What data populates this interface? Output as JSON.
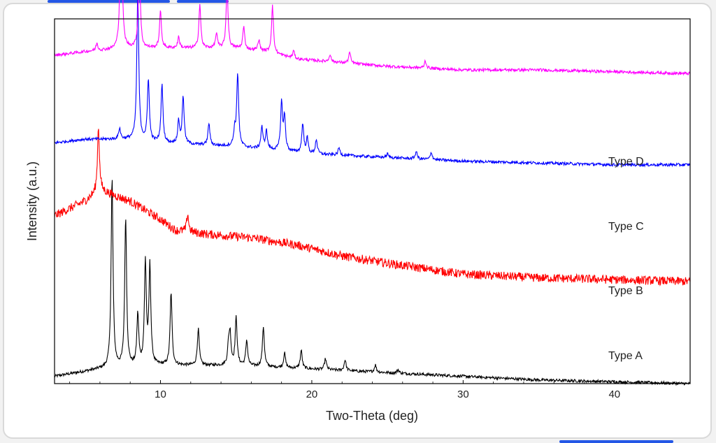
{
  "chart_data": {
    "type": "line",
    "title": "",
    "xlabel": "Two-Theta (deg)",
    "ylabel": "Intensity (a.u.)",
    "xlim": [
      3,
      45
    ],
    "xticks": [
      10,
      20,
      30,
      40
    ],
    "x_tick_labels": [
      "10",
      "20",
      "30",
      "40"
    ],
    "y_ticks_shown": false,
    "grid": false,
    "legend": "labels at right end of each trace",
    "series": [
      {
        "name": "Type A",
        "color": "#000000",
        "baseline": [
          [
            3,
            0.02
          ],
          [
            6,
            0.04
          ],
          [
            10,
            0.05
          ],
          [
            15,
            0.05
          ],
          [
            20,
            0.04
          ],
          [
            25,
            0.03
          ],
          [
            30,
            0.02
          ],
          [
            35,
            0.01
          ],
          [
            45,
            0.0
          ]
        ],
        "peaks": [
          [
            6.8,
            0.52
          ],
          [
            7.7,
            0.41
          ],
          [
            8.5,
            0.14
          ],
          [
            9.0,
            0.28
          ],
          [
            9.3,
            0.27
          ],
          [
            10.7,
            0.2
          ],
          [
            12.5,
            0.1
          ],
          [
            14.5,
            0.05
          ],
          [
            14.6,
            0.08
          ],
          [
            15.0,
            0.13
          ],
          [
            15.7,
            0.07
          ],
          [
            16.8,
            0.11
          ],
          [
            18.2,
            0.04
          ],
          [
            19.3,
            0.05
          ],
          [
            20.9,
            0.03
          ],
          [
            22.2,
            0.03
          ],
          [
            24.2,
            0.02
          ],
          [
            25.7,
            0.01
          ]
        ]
      },
      {
        "name": "Type B",
        "color": "#ff0000",
        "baseline": [
          [
            3,
            0.46
          ],
          [
            5,
            0.5
          ],
          [
            6,
            0.53
          ],
          [
            8,
            0.5
          ],
          [
            10,
            0.45
          ],
          [
            11,
            0.42
          ],
          [
            13,
            0.41
          ],
          [
            16,
            0.4
          ],
          [
            19,
            0.38
          ],
          [
            22,
            0.35
          ],
          [
            25,
            0.33
          ],
          [
            30,
            0.3
          ],
          [
            35,
            0.29
          ],
          [
            40,
            0.285
          ],
          [
            45,
            0.28
          ]
        ],
        "peaks": [
          [
            5.9,
            0.18
          ],
          [
            11.8,
            0.05
          ]
        ]
      },
      {
        "name": "Type C",
        "color": "#0000ff",
        "baseline": [
          [
            3,
            0.66
          ],
          [
            5,
            0.67
          ],
          [
            8,
            0.67
          ],
          [
            10,
            0.66
          ],
          [
            15,
            0.65
          ],
          [
            20,
            0.63
          ],
          [
            25,
            0.62
          ],
          [
            30,
            0.61
          ],
          [
            35,
            0.605
          ],
          [
            40,
            0.6
          ],
          [
            45,
            0.6
          ]
        ],
        "peaks": [
          [
            7.3,
            0.03
          ],
          [
            8.5,
            0.41
          ],
          [
            9.2,
            0.17
          ],
          [
            10.1,
            0.16
          ],
          [
            11.2,
            0.06
          ],
          [
            11.5,
            0.13
          ],
          [
            13.2,
            0.06
          ],
          [
            14.9,
            0.04
          ],
          [
            15.1,
            0.2
          ],
          [
            16.7,
            0.06
          ],
          [
            17.0,
            0.05
          ],
          [
            18.0,
            0.13
          ],
          [
            18.2,
            0.09
          ],
          [
            19.4,
            0.08
          ],
          [
            19.7,
            0.04
          ],
          [
            20.3,
            0.04
          ],
          [
            21.8,
            0.02
          ],
          [
            25.0,
            0.01
          ],
          [
            26.9,
            0.02
          ],
          [
            27.9,
            0.02
          ]
        ]
      },
      {
        "name": "Type D",
        "color": "#ff00ff",
        "baseline": [
          [
            3,
            0.9
          ],
          [
            5,
            0.91
          ],
          [
            8,
            0.92
          ],
          [
            10,
            0.92
          ],
          [
            12,
            0.92
          ],
          [
            15,
            0.92
          ],
          [
            17,
            0.91
          ],
          [
            19,
            0.89
          ],
          [
            22,
            0.88
          ],
          [
            25,
            0.87
          ],
          [
            30,
            0.86
          ],
          [
            35,
            0.86
          ],
          [
            40,
            0.855
          ],
          [
            45,
            0.85
          ]
        ],
        "peaks": [
          [
            5.8,
            0.02
          ],
          [
            7.4,
            0.45
          ],
          [
            8.6,
            0.25
          ],
          [
            10.0,
            0.1
          ],
          [
            11.2,
            0.03
          ],
          [
            12.6,
            0.12
          ],
          [
            13.7,
            0.04
          ],
          [
            14.4,
            0.17
          ],
          [
            15.5,
            0.06
          ],
          [
            16.5,
            0.03
          ],
          [
            17.4,
            0.13
          ],
          [
            18.8,
            0.02
          ],
          [
            21.2,
            0.02
          ],
          [
            22.5,
            0.03
          ],
          [
            27.5,
            0.02
          ]
        ]
      }
    ]
  },
  "labels": {
    "type_a": "Type A",
    "type_b": "Type B",
    "type_c": "Type C",
    "type_d": "Type D"
  },
  "colors": {
    "frame_accent": "#2457e6",
    "axis": "#000000"
  }
}
